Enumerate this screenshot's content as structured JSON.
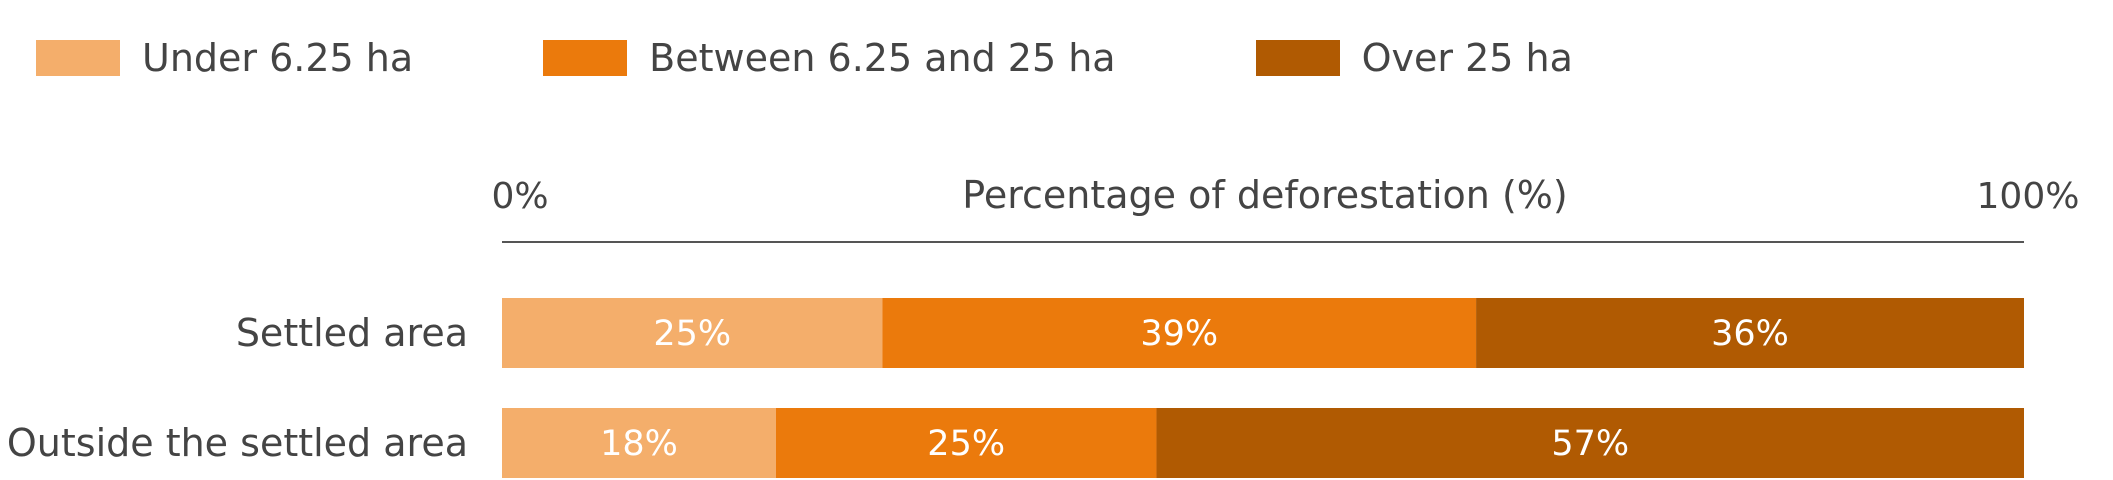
{
  "chart_data": {
    "type": "bar",
    "orientation": "horizontal",
    "stacked": true,
    "xlabel": "Percentage of deforestation (%)",
    "axis": {
      "min_label": "0%",
      "max_label": "100%",
      "xlim": [
        0,
        100
      ],
      "position": "top"
    },
    "categories": [
      "Settled area",
      "Outside the settled area"
    ],
    "series": [
      {
        "name": "Under 6.25 ha",
        "color": "#F4AE6B",
        "values": [
          25,
          18
        ],
        "labels": [
          "25%",
          "18%"
        ]
      },
      {
        "name": "Between 6.25 and 25 ha",
        "color": "#EB7A0C",
        "values": [
          39,
          25
        ],
        "labels": [
          "39%",
          "25%"
        ]
      },
      {
        "name": "Over 25 ha",
        "color": "#B05A02",
        "values": [
          36,
          57
        ],
        "labels": [
          "36%",
          "57%"
        ]
      }
    ],
    "legend_position": "top-left",
    "grid": false
  }
}
